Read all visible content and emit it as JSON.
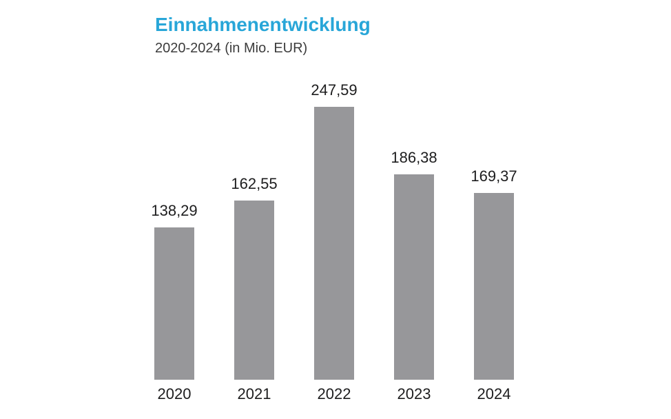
{
  "header": {
    "title": "Einnahmenentwicklung",
    "subtitle": "2020-2024 (in Mio. EUR)"
  },
  "colors": {
    "title": "#28a6d8",
    "subtitle": "#3c3c3c",
    "bar": "#97979a",
    "label_text": "#1d1d1e",
    "background": "#ffffff"
  },
  "chart_data": {
    "type": "bar",
    "title": "Einnahmenentwicklung",
    "subtitle": "2020-2024 (in Mio. EUR)",
    "categories": [
      "2020",
      "2021",
      "2022",
      "2023",
      "2024"
    ],
    "values": [
      138.29,
      162.55,
      247.59,
      186.38,
      169.37
    ],
    "value_labels": [
      "138,29",
      "162,55",
      "247,59",
      "186,38",
      "169,37"
    ],
    "xlabel": "",
    "ylabel": "",
    "unit": "Mio. EUR",
    "ylim": [
      0,
      260
    ],
    "grid": false,
    "legend": false,
    "axis_lines": false,
    "bar_color": "#97979a"
  }
}
